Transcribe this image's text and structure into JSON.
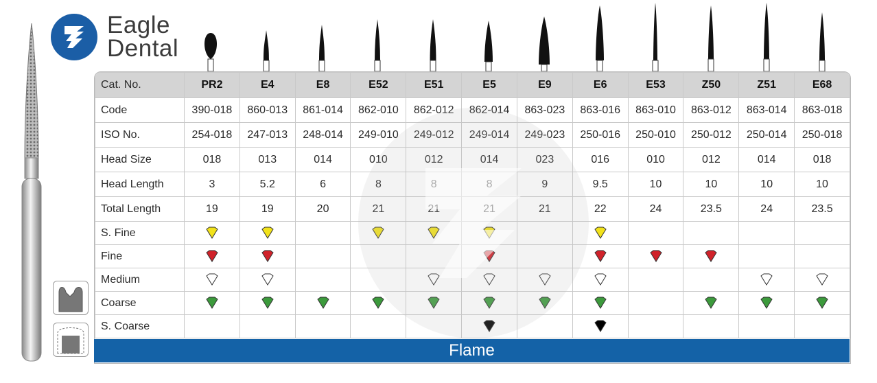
{
  "brand": {
    "line1": "Eagle",
    "line2": "Dental"
  },
  "colors": {
    "brand_blue": "#1b5ea6",
    "footer_blue": "#1462a7",
    "superfine": "#f2e21a",
    "fine": "#d0222a",
    "medium": "#ffffff",
    "coarse": "#3c9a3c",
    "supercoarse": "#000000"
  },
  "table": {
    "row_labels": {
      "cat": "Cat. No.",
      "code": "Code",
      "iso": "ISO No.",
      "head_size": "Head Size",
      "head_length": "Head Length",
      "total_length": "Total Length",
      "sfine": "S. Fine",
      "fine": "Fine",
      "medium": "Medium",
      "coarse": "Coarse",
      "scoarse": "S. Coarse"
    },
    "products": [
      {
        "cat": "PR2",
        "code": "390-018",
        "iso": "254-018",
        "head_size": "018",
        "head_length": "3",
        "total_length": "19",
        "grits": [
          "sfine",
          "fine",
          "medium",
          "coarse"
        ]
      },
      {
        "cat": "E4",
        "code": "860-013",
        "iso": "247-013",
        "head_size": "013",
        "head_length": "5.2",
        "total_length": "19",
        "grits": [
          "sfine",
          "fine",
          "medium",
          "coarse"
        ]
      },
      {
        "cat": "E8",
        "code": "861-014",
        "iso": "248-014",
        "head_size": "014",
        "head_length": "6",
        "total_length": "20",
        "grits": [
          "coarse"
        ]
      },
      {
        "cat": "E52",
        "code": "862-010",
        "iso": "249-010",
        "head_size": "010",
        "head_length": "8",
        "total_length": "21",
        "grits": [
          "sfine",
          "coarse"
        ]
      },
      {
        "cat": "E51",
        "code": "862-012",
        "iso": "249-012",
        "head_size": "012",
        "head_length": "8",
        "total_length": "21",
        "grits": [
          "sfine",
          "medium",
          "coarse"
        ]
      },
      {
        "cat": "E5",
        "code": "862-014",
        "iso": "249-014",
        "head_size": "014",
        "head_length": "8",
        "total_length": "21",
        "grits": [
          "sfine",
          "fine",
          "medium",
          "coarse",
          "scoarse"
        ]
      },
      {
        "cat": "E9",
        "code": "863-023",
        "iso": "249-023",
        "head_size": "023",
        "head_length": "9",
        "total_length": "21",
        "grits": [
          "medium",
          "coarse"
        ]
      },
      {
        "cat": "E6",
        "code": "863-016",
        "iso": "250-016",
        "head_size": "016",
        "head_length": "9.5",
        "total_length": "22",
        "grits": [
          "sfine",
          "fine",
          "medium",
          "coarse",
          "scoarse"
        ]
      },
      {
        "cat": "E53",
        "code": "863-010",
        "iso": "250-010",
        "head_size": "010",
        "head_length": "10",
        "total_length": "24",
        "grits": [
          "fine"
        ]
      },
      {
        "cat": "Z50",
        "code": "863-012",
        "iso": "250-012",
        "head_size": "012",
        "head_length": "10",
        "total_length": "23.5",
        "grits": [
          "fine",
          "coarse"
        ]
      },
      {
        "cat": "Z51",
        "code": "863-014",
        "iso": "250-014",
        "head_size": "014",
        "head_length": "10",
        "total_length": "24",
        "grits": [
          "medium",
          "coarse"
        ]
      },
      {
        "cat": "E68",
        "code": "863-018",
        "iso": "250-018",
        "head_size": "018",
        "head_length": "10",
        "total_length": "23.5",
        "grits": [
          "medium",
          "coarse"
        ]
      }
    ]
  },
  "footer": {
    "label": "Flame"
  }
}
